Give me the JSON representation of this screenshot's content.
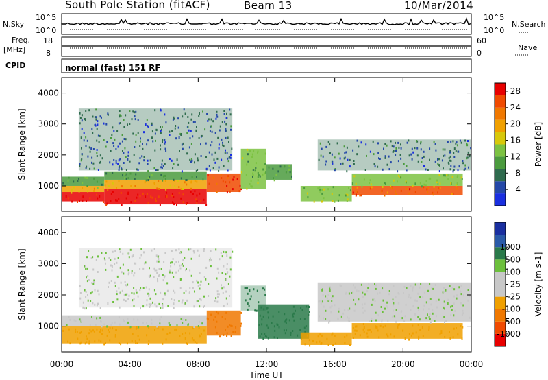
{
  "header": {
    "title": "South Pole Station (fitACF)",
    "beam": "Beam 13",
    "date": "10/Mar/2014"
  },
  "meta_panels": {
    "n_sky_label": "N.Sky",
    "n_search_label": "N.Search",
    "freq_label": "Freq.",
    "freq_unit": "[MHz]",
    "nave_label": "Nave",
    "cpid_label": "CPID",
    "cpid_text": "normal (fast) 151 RF",
    "noise_ticks": [
      "10^5",
      "10^0"
    ],
    "freq_ticks": [
      18,
      8
    ],
    "nave_ticks": [
      60,
      0
    ]
  },
  "colors": {
    "power": [
      "#1a2fe0",
      "#2448a8",
      "#2f6b4e",
      "#4b9b3e",
      "#7cc242",
      "#d8c80a",
      "#f0a000",
      "#f07800",
      "#f04a00",
      "#e80000"
    ],
    "velocity": [
      "#e80000",
      "#f04a00",
      "#f07800",
      "#f0a000",
      "#c8c8c8",
      "#c8c8c8",
      "#6cc03c",
      "#2a7a4a",
      "#2a5aa8",
      "#1a2fa0"
    ]
  },
  "chart_data": [
    {
      "type": "heatmap",
      "title": "",
      "xlabel": "Time UT",
      "ylabel": "Slant Range [km]",
      "x_ticks": [
        "00:00",
        "04:00",
        "08:00",
        "12:00",
        "16:00",
        "20:00",
        "00:00"
      ],
      "y_ticks": [
        1000,
        2000,
        3000,
        4000
      ],
      "ylim": [
        180,
        4500
      ],
      "colorbar_label": "Power [dB]",
      "colorbar_ticks": [
        4,
        8,
        12,
        16,
        20,
        24,
        28
      ],
      "colorbar_range": [
        0,
        30
      ],
      "bands": [
        {
          "t0": 0.0,
          "t1": 2.5,
          "r0": 500,
          "r1": 800,
          "value": 28
        },
        {
          "t0": 0.0,
          "t1": 2.5,
          "r0": 800,
          "r1": 1000,
          "value": 18
        },
        {
          "t0": 0.0,
          "t1": 2.5,
          "r0": 1000,
          "r1": 1300,
          "value": 10
        },
        {
          "t0": 2.5,
          "t1": 8.5,
          "r0": 400,
          "r1": 900,
          "value": 28
        },
        {
          "t0": 2.5,
          "t1": 8.5,
          "r0": 900,
          "r1": 1200,
          "value": 20
        },
        {
          "t0": 2.5,
          "t1": 8.5,
          "r0": 1200,
          "r1": 1450,
          "value": 10
        },
        {
          "t0": 8.5,
          "t1": 10.5,
          "r0": 800,
          "r1": 1400,
          "value": 26
        },
        {
          "t0": 10.5,
          "t1": 12.0,
          "r0": 900,
          "r1": 2200,
          "value": 12
        },
        {
          "t0": 12.0,
          "t1": 13.5,
          "r0": 1200,
          "r1": 1700,
          "value": 10
        },
        {
          "t0": 14.0,
          "t1": 17.0,
          "r0": 500,
          "r1": 1000,
          "value": 14
        },
        {
          "t0": 17.0,
          "t1": 23.5,
          "r0": 700,
          "r1": 1000,
          "value": 24
        },
        {
          "t0": 17.0,
          "t1": 23.5,
          "r0": 1000,
          "r1": 1400,
          "value": 14
        },
        {
          "t0": 1.0,
          "t1": 10.0,
          "r0": 1500,
          "r1": 3500,
          "value": 6
        },
        {
          "t0": 15.0,
          "t1": 24.0,
          "r0": 1500,
          "r1": 2500,
          "value": 6
        }
      ]
    },
    {
      "type": "heatmap",
      "title": "",
      "xlabel": "Time UT",
      "ylabel": "Slant Range [km]",
      "x_ticks": [
        "00:00",
        "04:00",
        "08:00",
        "12:00",
        "16:00",
        "20:00",
        "00:00"
      ],
      "y_ticks": [
        1000,
        2000,
        3000,
        4000
      ],
      "ylim": [
        180,
        4500
      ],
      "colorbar_label": "Velocity [m s-1]",
      "colorbar_ticks": [
        -1000,
        -500,
        -100,
        -25,
        25,
        100,
        500,
        1000
      ],
      "bands": [
        {
          "t0": 0.0,
          "t1": 8.5,
          "r0": 450,
          "r1": 1000,
          "value": -300
        },
        {
          "t0": 0.0,
          "t1": 8.5,
          "r0": 1000,
          "r1": 1350,
          "value": 0
        },
        {
          "t0": 8.5,
          "t1": 10.5,
          "r0": 700,
          "r1": 1500,
          "value": -700
        },
        {
          "t0": 10.5,
          "t1": 12.0,
          "r0": 1500,
          "r1": 2300,
          "value": 300
        },
        {
          "t0": 11.5,
          "t1": 14.5,
          "r0": 600,
          "r1": 1700,
          "value": 200
        },
        {
          "t0": 14.0,
          "t1": 17.0,
          "r0": 400,
          "r1": 800,
          "value": -300
        },
        {
          "t0": 17.0,
          "t1": 23.5,
          "r0": 600,
          "r1": 1100,
          "value": -250
        },
        {
          "t0": 15.0,
          "t1": 24.0,
          "r0": 1150,
          "r1": 2400,
          "value": 0
        },
        {
          "t0": 1.0,
          "t1": 10.0,
          "r0": 1600,
          "r1": 3500,
          "value": 0
        }
      ]
    }
  ]
}
